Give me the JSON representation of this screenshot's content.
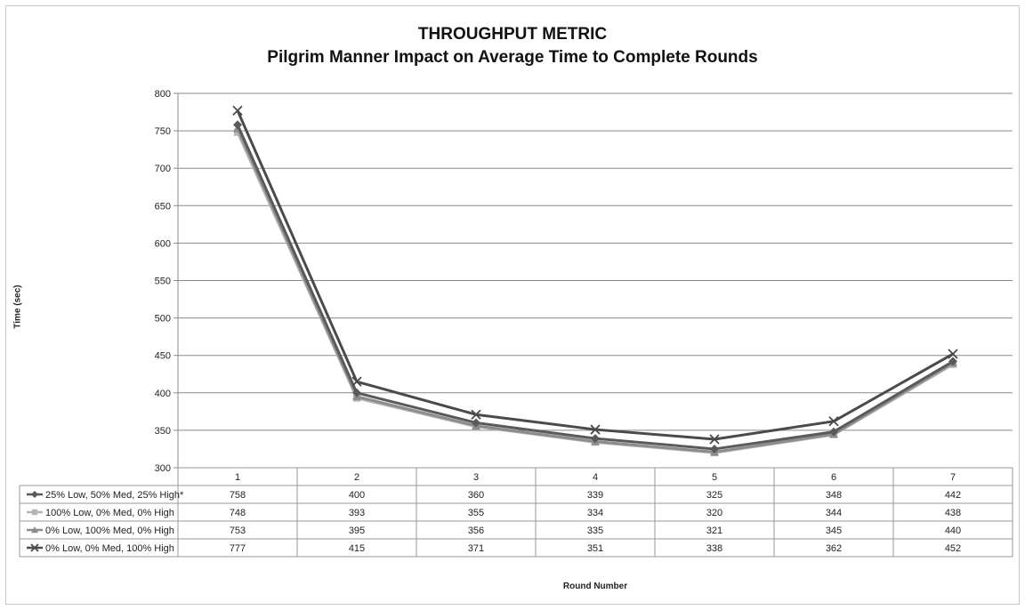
{
  "chart_data": {
    "type": "line",
    "title": "THROUGHPUT METRIC",
    "subtitle": "Pilgrim Manner Impact on Average Time to Complete Rounds",
    "xlabel": "Round Number",
    "ylabel": "Time (sec)",
    "categories": [
      "1",
      "2",
      "3",
      "4",
      "5",
      "6",
      "7"
    ],
    "ylim": [
      300,
      800
    ],
    "yticks": [
      300,
      350,
      400,
      450,
      500,
      550,
      600,
      650,
      700,
      750,
      800
    ],
    "grid": true,
    "legend": "data-table-below",
    "series": [
      {
        "name": "25% Low, 50% Med, 25% High*",
        "values": [
          758,
          400,
          360,
          339,
          325,
          348,
          442
        ],
        "color": "#5a5a5a",
        "marker": "diamond"
      },
      {
        "name": "100% Low, 0% Med, 0% High",
        "values": [
          748,
          393,
          355,
          334,
          320,
          344,
          438
        ],
        "color": "#b4b4b4",
        "marker": "square"
      },
      {
        "name": "0% Low, 100% Med, 0% High",
        "values": [
          753,
          395,
          356,
          335,
          321,
          345,
          440
        ],
        "color": "#8c8c8c",
        "marker": "triangle"
      },
      {
        "name": "0% Low, 0% Med, 100% High",
        "values": [
          777,
          415,
          371,
          351,
          338,
          362,
          452
        ],
        "color": "#4a4a4a",
        "marker": "x"
      }
    ]
  }
}
